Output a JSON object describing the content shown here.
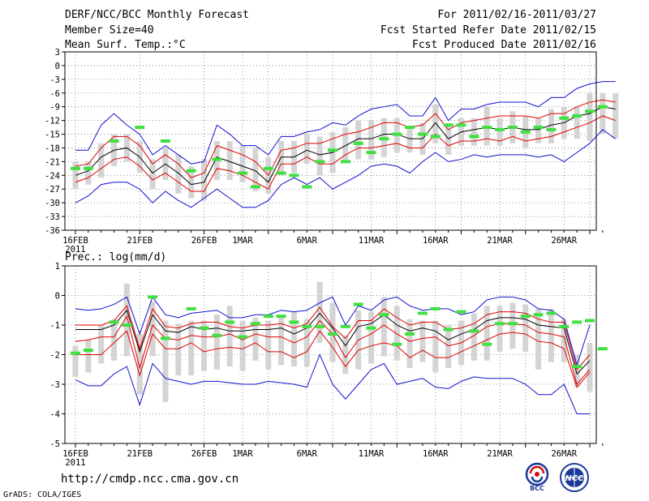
{
  "header": {
    "title": "DERF/NCC/BCC Monthly Forecast",
    "member_size": "Member Size=40",
    "variable": "Mean Surf. Temp.:°C",
    "period": "For 2011/02/16-2011/03/27",
    "started": "Fcst Started Refer Date 2011/02/15",
    "produced": "Fcst Produced Date 2011/02/16"
  },
  "footer": {
    "url": "http://cmdp.ncc.cma.gov.cn",
    "credit": "GrADS: COLA/IGES",
    "logo_left_text": "BCC",
    "logo_right_text": "NCC"
  },
  "colors": {
    "envelope": "#1010d0",
    "quartile": "#e00000",
    "median": "#000000",
    "box": "#d4d4d4",
    "marker": "#40e040",
    "grid": "#7a7a7a"
  },
  "chart_data": [
    {
      "type": "box-ensemble",
      "title": "Mean Surf. Temp.:°C",
      "ylabel": "°C",
      "ylim": [
        -36,
        3
      ],
      "yticks": [
        3,
        0,
        -3,
        -6,
        -9,
        -12,
        -15,
        -18,
        -21,
        -24,
        -27,
        -30,
        -33,
        -36
      ],
      "x_day_range": [
        0,
        40
      ],
      "xticks": [
        {
          "day": 0,
          "label": "16FEB",
          "sub": "2011"
        },
        {
          "day": 5,
          "label": "21FEB"
        },
        {
          "day": 10,
          "label": "26FEB"
        },
        {
          "day": 13,
          "label": "1MAR"
        },
        {
          "day": 18,
          "label": "6MAR"
        },
        {
          "day": 23,
          "label": "11MAR"
        },
        {
          "day": 28,
          "label": "16MAR"
        },
        {
          "day": 33,
          "label": "21MAR"
        },
        {
          "day": 38,
          "label": "26MAR"
        }
      ],
      "series": [
        {
          "name": "max",
          "values": [
            -18.5,
            -18.5,
            -13,
            -10.5,
            -13,
            -15,
            -19.5,
            -17.5,
            -19.5,
            -21.5,
            -21,
            -13,
            -15,
            -17.5,
            -17.5,
            -19.5,
            -15.5,
            -15.5,
            -14.5,
            -14,
            -12.5,
            -13,
            -11,
            -9.5,
            -9,
            -8.5,
            -11,
            -11,
            -7,
            -12,
            -9.5,
            -9.5,
            -8.5,
            -8,
            -8,
            -8,
            -9,
            -7,
            -7,
            -5,
            -4,
            -3.5,
            -3.5
          ]
        },
        {
          "name": "upper_quartile",
          "values": [
            -22,
            -21.5,
            -18,
            -15.5,
            -15.5,
            -17.5,
            -21.5,
            -19.5,
            -21.5,
            -24.5,
            -23.5,
            -17.5,
            -18.5,
            -19.5,
            -21,
            -24,
            -18.5,
            -18,
            -17,
            -17,
            -16,
            -15,
            -14.5,
            -13.5,
            -12.5,
            -12.5,
            -13.5,
            -13,
            -10.5,
            -14,
            -12.5,
            -12,
            -11.5,
            -11,
            -11,
            -11,
            -11.5,
            -10.5,
            -10.5,
            -9,
            -8,
            -7.5,
            -8
          ]
        },
        {
          "name": "median",
          "values": [
            -24,
            -23,
            -20,
            -18.5,
            -18,
            -20,
            -23.5,
            -21.5,
            -23.5,
            -26,
            -25.5,
            -20,
            -21,
            -22,
            -23,
            -25.5,
            -20,
            -20,
            -18.5,
            -19.5,
            -19,
            -17.5,
            -16,
            -16,
            -15,
            -15,
            -16,
            -16,
            -12.5,
            -16,
            -14.5,
            -14,
            -13.5,
            -14,
            -13.5,
            -14,
            -14,
            -13,
            -12.5,
            -11,
            -10.5,
            -9,
            -9.5
          ]
        },
        {
          "name": "lower_quartile",
          "values": [
            -25.5,
            -24.5,
            -22.5,
            -20.5,
            -20,
            -22,
            -25,
            -23.5,
            -25.5,
            -27.5,
            -27.5,
            -22.5,
            -23,
            -24,
            -25.5,
            -27,
            -21.5,
            -21.5,
            -20,
            -21.5,
            -21.5,
            -19.5,
            -18,
            -18,
            -17.5,
            -17,
            -18,
            -18,
            -15,
            -17.5,
            -16.5,
            -16.5,
            -16,
            -16.5,
            -15.5,
            -16.5,
            -16,
            -15.5,
            -14.5,
            -13.5,
            -12.5,
            -11,
            -12
          ]
        },
        {
          "name": "min",
          "values": [
            -30,
            -28.5,
            -26,
            -25.5,
            -25.5,
            -27,
            -30,
            -27.5,
            -29.5,
            -31,
            -29,
            -27,
            -29,
            -31,
            -31,
            -29.5,
            -26,
            -24.5,
            -26,
            -24.5,
            -27,
            -25.5,
            -24,
            -22,
            -21.5,
            -22,
            -23.5,
            -21,
            -19,
            -21,
            -20.5,
            -19.5,
            -20,
            -19.5,
            -19.5,
            -19.5,
            -20,
            -19.5,
            -21,
            -19,
            -17,
            -14,
            -16
          ]
        },
        {
          "name": "box_top",
          "values": [
            -21,
            -21,
            -17,
            -15,
            -15,
            -16.5,
            -20.5,
            -18,
            -19.5,
            -22,
            -20.5,
            -16.5,
            -16.5,
            -17.5,
            -18,
            -20,
            -16.5,
            -16.5,
            -15,
            -15.5,
            -14.5,
            -13.5,
            -12,
            -12,
            -11.5,
            -11.5,
            -13.5,
            -12.5,
            -8.5,
            -13,
            -11.5,
            -11.5,
            -9,
            -11.5,
            -10,
            -11,
            -11.5,
            -9.5,
            -9,
            -9,
            -6,
            -6,
            -6
          ]
        },
        {
          "name": "box_bottom",
          "values": [
            -27,
            -26,
            -24.5,
            -22,
            -21,
            -23.5,
            -27,
            -25,
            -28,
            -29,
            -29.5,
            -25,
            -25,
            -25.5,
            -27.5,
            -28,
            -24,
            -23.5,
            -21.5,
            -24,
            -23.5,
            -21,
            -20.5,
            -20.5,
            -20,
            -19,
            -19,
            -19.5,
            -17,
            -19.5,
            -17.5,
            -17.5,
            -17.5,
            -17.5,
            -17,
            -18,
            -17,
            -17,
            -16,
            -16,
            -16.5,
            -15,
            -16
          ]
        },
        {
          "name": "marker",
          "values": [
            -22.5,
            -22.5,
            -16.5,
            -13.5,
            -16.5,
            -23,
            -20.5,
            -23.5,
            -26.5,
            -22.5,
            -23.5,
            -24,
            -26.5,
            -21,
            -18.5,
            -21,
            -17,
            -19,
            -16,
            -15,
            -13.5,
            -15,
            -15.5,
            -13,
            -13,
            -15.5,
            -13.5,
            -14,
            -13.5,
            -14.5,
            -13.5,
            -14,
            -11.5,
            -11,
            -10,
            -9
          ]
        }
      ],
      "marker_days": [
        0,
        1,
        3,
        5,
        7,
        9,
        11,
        13,
        14,
        15,
        16,
        17,
        18,
        19,
        20,
        21,
        22,
        23,
        24,
        25,
        26,
        27,
        28,
        29,
        30,
        31,
        32,
        33,
        34,
        35,
        36,
        37,
        38,
        39,
        40,
        41
      ]
    },
    {
      "type": "box-ensemble",
      "title": "Prec.: log(mm/d)",
      "ylabel": "log(mm/d)",
      "ylim": [
        -5,
        1
      ],
      "yticks": [
        1,
        0,
        -1,
        -2,
        -3,
        -4,
        -5
      ],
      "x_day_range": [
        0,
        40
      ],
      "xticks": [
        {
          "day": 0,
          "label": "16FEB",
          "sub": "2011"
        },
        {
          "day": 5,
          "label": "21FEB"
        },
        {
          "day": 10,
          "label": "26FEB"
        },
        {
          "day": 13,
          "label": "1MAR"
        },
        {
          "day": 18,
          "label": "6MAR"
        },
        {
          "day": 23,
          "label": "11MAR"
        },
        {
          "day": 28,
          "label": "16MAR"
        },
        {
          "day": 33,
          "label": "21MAR"
        },
        {
          "day": 38,
          "label": "26MAR"
        }
      ],
      "series": [
        {
          "name": "max",
          "values": [
            -0.45,
            -0.5,
            -0.45,
            -0.3,
            -0.05,
            -1.3,
            -0.05,
            -0.65,
            -0.75,
            -0.6,
            -0.55,
            -0.5,
            -0.75,
            -0.75,
            -0.65,
            -0.65,
            -0.5,
            -0.55,
            -0.5,
            -0.25,
            -0.05,
            -1.0,
            -0.35,
            -0.5,
            -0.15,
            -0.05,
            -0.35,
            -0.5,
            -0.45,
            -0.45,
            -0.65,
            -0.55,
            -0.15,
            -0.05,
            -0.05,
            -0.15,
            -0.45,
            -0.5,
            -0.8,
            -2.35,
            -1.0
          ]
        },
        {
          "name": "upper_quartile",
          "values": [
            -1.0,
            -1.0,
            -1.0,
            -0.85,
            -0.35,
            -1.8,
            -0.45,
            -1.05,
            -1.1,
            -0.95,
            -0.9,
            -0.9,
            -1.05,
            -1.1,
            -1.0,
            -1.0,
            -0.95,
            -1.1,
            -0.95,
            -0.4,
            -1.05,
            -1.45,
            -0.85,
            -0.85,
            -0.45,
            -0.75,
            -1.0,
            -0.9,
            -0.9,
            -1.15,
            -1.1,
            -0.95,
            -0.65,
            -0.55,
            -0.55,
            -0.6,
            -0.8,
            -0.9,
            -0.9,
            -2.5,
            -2.0
          ]
        },
        {
          "name": "median",
          "values": [
            -1.15,
            -1.15,
            -1.15,
            -1.0,
            -0.5,
            -1.9,
            -0.65,
            -1.2,
            -1.25,
            -1.05,
            -1.15,
            -1.1,
            -1.2,
            -1.2,
            -1.15,
            -1.15,
            -1.1,
            -1.3,
            -1.1,
            -0.6,
            -1.1,
            -1.7,
            -1.05,
            -0.95,
            -0.65,
            -1.0,
            -1.2,
            -1.1,
            -1.2,
            -1.5,
            -1.3,
            -1.15,
            -0.85,
            -0.75,
            -0.75,
            -0.8,
            -1.0,
            -1.05,
            -1.1,
            -2.65,
            -2.2
          ]
        },
        {
          "name": "lower_quartile",
          "values": [
            -1.55,
            -1.5,
            -1.4,
            -1.4,
            -0.7,
            -2.45,
            -1.0,
            -1.45,
            -1.5,
            -1.35,
            -1.4,
            -1.4,
            -1.3,
            -1.5,
            -1.3,
            -1.4,
            -1.4,
            -1.6,
            -1.4,
            -0.85,
            -1.3,
            -2.1,
            -1.5,
            -1.3,
            -1.0,
            -1.3,
            -1.55,
            -1.45,
            -1.4,
            -1.7,
            -1.6,
            -1.35,
            -1.05,
            -0.95,
            -0.95,
            -1.0,
            -1.25,
            -1.3,
            -1.4,
            -3.0,
            -2.5
          ]
        },
        {
          "name": "lowest_quartile",
          "values": [
            -2.0,
            -2.0,
            -2.0,
            -1.6,
            -1.2,
            -2.7,
            -1.3,
            -1.8,
            -1.8,
            -1.6,
            -1.9,
            -1.8,
            -1.75,
            -1.8,
            -1.6,
            -1.9,
            -1.9,
            -2.1,
            -1.9,
            -1.2,
            -1.75,
            -2.4,
            -1.85,
            -1.7,
            -1.6,
            -1.7,
            -2.1,
            -1.85,
            -2.1,
            -2.1,
            -1.9,
            -1.7,
            -1.5,
            -1.3,
            -1.25,
            -1.3,
            -1.55,
            -1.6,
            -1.8,
            -3.1,
            -2.6
          ]
        },
        {
          "name": "min",
          "values": [
            -2.85,
            -3.05,
            -3.05,
            -2.65,
            -2.4,
            -3.7,
            -2.3,
            -2.8,
            -2.9,
            -3.0,
            -2.9,
            -2.9,
            -2.95,
            -3.0,
            -3.0,
            -2.9,
            -2.95,
            -3.0,
            -3.1,
            -2.0,
            -3.0,
            -3.5,
            -3.0,
            -2.5,
            -2.3,
            -3.0,
            -2.9,
            -2.8,
            -3.1,
            -3.15,
            -2.9,
            -2.75,
            -2.8,
            -2.8,
            -2.8,
            -3.0,
            -3.35,
            -3.35,
            -3.0,
            -4.0,
            -4.0
          ]
        },
        {
          "name": "box_top",
          "values": [
            -1.7,
            -1.5,
            -1.0,
            -0.8,
            0.4,
            -1.3,
            -0.2,
            -0.85,
            -0.95,
            -0.85,
            -0.85,
            -0.65,
            -0.35,
            -0.85,
            -0.75,
            -0.85,
            -0.7,
            -0.55,
            -0.8,
            0.45,
            -0.25,
            -1.35,
            -0.5,
            -0.55,
            -0.05,
            -0.35,
            -0.8,
            -0.85,
            -0.85,
            -1.0,
            -0.85,
            -0.6,
            -0.35,
            -0.35,
            -0.25,
            -0.3,
            -0.45,
            -0.45,
            -0.8,
            -2.0,
            -1.6
          ]
        },
        {
          "name": "box_bottom",
          "values": [
            -2.75,
            -2.6,
            -2.3,
            -2.2,
            -2.05,
            -3.35,
            -2.05,
            -3.6,
            -2.7,
            -2.7,
            -2.55,
            -2.5,
            -2.4,
            -2.55,
            -2.2,
            -2.5,
            -2.35,
            -2.4,
            -2.4,
            -1.6,
            -2.25,
            -2.65,
            -2.5,
            -2.3,
            -2.05,
            -2.2,
            -2.45,
            -2.25,
            -2.6,
            -2.45,
            -2.35,
            -2.2,
            -2.2,
            -1.9,
            -1.8,
            -1.9,
            -2.5,
            -2.25,
            -2.25,
            -3.1,
            -3.25
          ]
        },
        {
          "name": "marker",
          "values": [
            -1.95,
            -1.85,
            -0.9,
            -1.0,
            -0.05,
            -1.45,
            -0.45,
            -1.1,
            -1.35,
            -0.9,
            -1.4,
            -0.95,
            -0.7,
            -0.7,
            -0.9,
            -1.05,
            -1.05,
            -1.3,
            -1.05,
            -0.3,
            -1.1,
            -0.65,
            -1.65,
            -1.3,
            -0.6,
            -0.45,
            -1.15,
            -0.55,
            -1.2,
            -1.65,
            -0.95,
            -0.95,
            -0.7,
            -0.65,
            -0.6,
            -1.05,
            -0.9,
            -0.85,
            -2.4,
            -1.8
          ]
        },
        {
          "name": "marker_extra",
          "values": []
        }
      ],
      "marker_days": [
        0,
        1,
        3,
        4,
        6,
        7,
        9,
        10,
        11,
        12,
        13,
        14,
        15,
        16,
        17,
        18,
        19,
        20,
        21,
        22,
        23,
        24,
        25,
        26,
        27,
        28,
        29,
        30,
        31,
        32,
        33,
        34,
        35,
        36,
        37,
        38,
        39,
        40,
        39,
        41
      ]
    }
  ]
}
